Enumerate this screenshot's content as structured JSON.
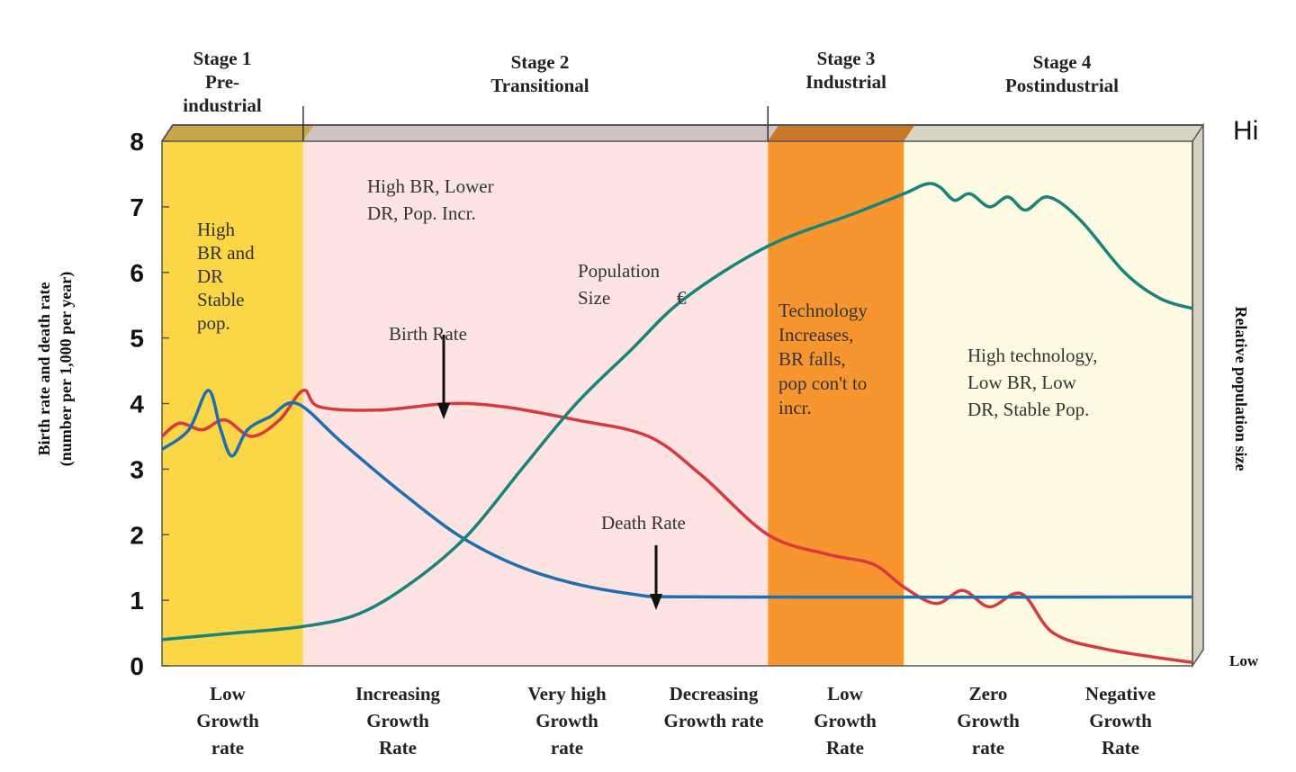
{
  "chart_data": {
    "type": "line",
    "title": "",
    "ylabel": [
      "Birth rate and death rate",
      "(number per 1,000 per year)"
    ],
    "y2label": "Relative population size",
    "y2_ticks": [
      "Hi",
      "Low"
    ],
    "ylim": [
      0,
      8
    ],
    "yticks": [
      "0",
      "1",
      "2",
      "3",
      "4",
      "5",
      "6",
      "7",
      "8"
    ],
    "xlim": [
      0,
      100
    ],
    "colors": {
      "stage1": "#fbd748",
      "stage2": "#fde3e1",
      "stage3": "#f7962f",
      "stage4": "#fefbe2",
      "birth_rate": "#d9383f",
      "death_rate": "#1f6fb0",
      "population": "#17837a"
    },
    "stages": [
      {
        "lines": [
          "Stage 1",
          "Pre-",
          "industrial"
        ],
        "x_range": [
          0,
          13.7
        ]
      },
      {
        "lines": [
          "Stage 2",
          "Transitional"
        ],
        "x_range": [
          13.7,
          58.8
        ]
      },
      {
        "lines": [
          "Stage 3",
          "Industrial"
        ],
        "x_range": [
          58.8,
          72.0
        ]
      },
      {
        "lines": [
          "Stage 4",
          "Postindustrial"
        ],
        "x_range": [
          72.0,
          100
        ]
      }
    ],
    "bottom_labels": [
      [
        "Low",
        "Growth",
        "rate"
      ],
      [
        "Increasing",
        "Growth",
        "Rate"
      ],
      [
        "Very high",
        "Growth",
        "rate"
      ],
      [
        "Decreasing",
        "Growth rate"
      ],
      [
        "Low",
        "Growth",
        "Rate"
      ],
      [
        "Zero",
        "Growth",
        "rate"
      ],
      [
        "Negative",
        "Growth",
        "Rate"
      ]
    ],
    "annotations": {
      "stage1": [
        "High",
        "BR and",
        "DR",
        "Stable",
        "pop."
      ],
      "stage2": [
        "High BR, Lower",
        "DR, Pop. Incr."
      ],
      "stage3": [
        "Technology",
        "Increases,",
        "BR falls,",
        "pop con't to",
        "incr."
      ],
      "stage4": [
        "High technology,",
        "Low BR, Low",
        "DR, Stable Pop."
      ],
      "population_label": [
        "Population",
        "Size"
      ],
      "population_symbol": "€",
      "birth_rate_label": "Birth Rate",
      "death_rate_label": "Death Rate"
    },
    "series": [
      {
        "name": "Birth Rate",
        "key": "birth_rate",
        "x": [
          0,
          1.7,
          3.9,
          6.1,
          8.7,
          11.4,
          13.7,
          15.3,
          21.0,
          27.9,
          33.2,
          40.2,
          47.2,
          52.4,
          58.8,
          64.6,
          69.0,
          72.0,
          75.1,
          77.7,
          80.3,
          83.4,
          86.5,
          91.7,
          100
        ],
        "y": [
          3.5,
          3.7,
          3.6,
          3.75,
          3.5,
          3.75,
          4.2,
          3.95,
          3.9,
          4.0,
          3.95,
          3.75,
          3.5,
          2.9,
          2.0,
          1.7,
          1.55,
          1.2,
          0.95,
          1.15,
          0.9,
          1.1,
          0.5,
          0.25,
          0.05
        ]
      },
      {
        "name": "Death Rate",
        "key": "death_rate",
        "x": [
          0,
          2.6,
          4.5,
          5.7,
          6.8,
          8.3,
          10.5,
          13.1,
          17.5,
          23.6,
          29.7,
          36.7,
          45.4,
          54.1,
          100
        ],
        "y": [
          3.3,
          3.6,
          4.2,
          3.6,
          3.2,
          3.6,
          3.8,
          4.0,
          3.4,
          2.6,
          1.9,
          1.4,
          1.1,
          1.05,
          1.05
        ]
      },
      {
        "name": "Population Size",
        "key": "population",
        "x": [
          0,
          7.0,
          13.7,
          19.2,
          24.5,
          29.7,
          34.9,
          40.2,
          45.4,
          50.7,
          58.8,
          67.2,
          72.0,
          74.2,
          75.5,
          76.9,
          78.4,
          80.3,
          82.1,
          83.8,
          86.0,
          89.1,
          93.4,
          96.9,
          100
        ],
        "y": [
          0.4,
          0.5,
          0.6,
          0.8,
          1.3,
          2.0,
          3.0,
          4.0,
          4.8,
          5.6,
          6.4,
          6.9,
          7.2,
          7.35,
          7.3,
          7.1,
          7.2,
          7.0,
          7.15,
          6.95,
          7.15,
          6.8,
          6.0,
          5.6,
          5.45
        ]
      }
    ]
  }
}
